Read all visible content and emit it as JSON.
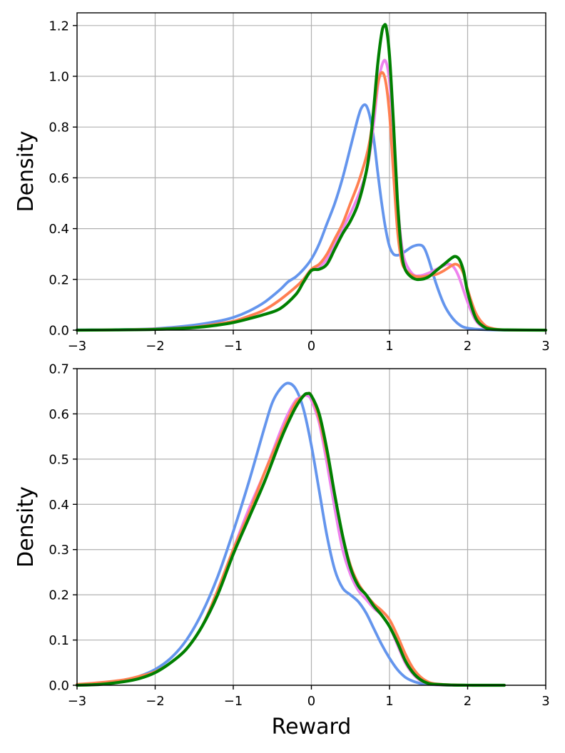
{
  "chart_data": [
    {
      "type": "line",
      "title": "",
      "xlabel": "",
      "ylabel": "Density",
      "xlim": [
        -3,
        3
      ],
      "ylim": [
        0,
        1.25
      ],
      "xticks": [
        -3,
        -2,
        -1,
        0,
        1,
        2,
        3
      ],
      "xtick_labels": [
        "−3",
        "−2",
        "−1",
        "0",
        "1",
        "2",
        "3"
      ],
      "yticks": [
        0,
        0.2,
        0.4,
        0.6,
        0.8,
        1.0,
        1.2
      ],
      "ytick_labels": [
        "0.0",
        "0.2",
        "0.4",
        "0.6",
        "0.8",
        "1.0",
        "1.2"
      ],
      "grid": true,
      "series": [
        {
          "color": "#6495ED",
          "x": [
            -3,
            -2.5,
            -2,
            -1.5,
            -1.2,
            -1,
            -0.8,
            -0.6,
            -0.4,
            -0.3,
            -0.2,
            -0.1,
            0,
            0.1,
            0.2,
            0.3,
            0.4,
            0.5,
            0.6,
            0.65,
            0.7,
            0.75,
            0.8,
            0.85,
            0.9,
            0.95,
            1.0,
            1.05,
            1.1,
            1.15,
            1.2,
            1.3,
            1.4,
            1.45,
            1.5,
            1.6,
            1.7,
            1.8,
            1.9,
            2.0,
            2.2,
            2.5,
            3
          ],
          "y": [
            0.001,
            0.002,
            0.006,
            0.02,
            0.035,
            0.05,
            0.075,
            0.11,
            0.16,
            0.19,
            0.21,
            0.24,
            0.28,
            0.34,
            0.42,
            0.5,
            0.6,
            0.72,
            0.84,
            0.88,
            0.885,
            0.84,
            0.75,
            0.62,
            0.5,
            0.4,
            0.33,
            0.3,
            0.295,
            0.3,
            0.31,
            0.33,
            0.335,
            0.32,
            0.28,
            0.18,
            0.1,
            0.05,
            0.02,
            0.008,
            0.002,
            0.0,
            0.0
          ]
        },
        {
          "color": "#EE82EE",
          "x": [
            -3,
            -2.5,
            -2,
            -1.5,
            -1.2,
            -1,
            -0.8,
            -0.6,
            -0.4,
            -0.2,
            -0.1,
            0,
            0.1,
            0.2,
            0.3,
            0.4,
            0.5,
            0.6,
            0.7,
            0.75,
            0.8,
            0.85,
            0.9,
            0.95,
            1.0,
            1.05,
            1.1,
            1.15,
            1.2,
            1.3,
            1.4,
            1.5,
            1.6,
            1.7,
            1.75,
            1.8,
            1.85,
            1.9,
            2.0,
            2.1,
            2.2,
            2.3,
            2.5,
            3
          ],
          "y": [
            0.0,
            0.001,
            0.004,
            0.012,
            0.025,
            0.035,
            0.055,
            0.08,
            0.12,
            0.17,
            0.2,
            0.24,
            0.25,
            0.28,
            0.34,
            0.4,
            0.46,
            0.53,
            0.62,
            0.7,
            0.82,
            0.96,
            1.04,
            1.06,
            0.98,
            0.78,
            0.52,
            0.35,
            0.27,
            0.22,
            0.215,
            0.225,
            0.24,
            0.255,
            0.26,
            0.255,
            0.235,
            0.2,
            0.11,
            0.04,
            0.012,
            0.004,
            0.001,
            0.0
          ]
        },
        {
          "color": "#FF7F50",
          "x": [
            -3,
            -2.5,
            -2,
            -1.5,
            -1.2,
            -1,
            -0.8,
            -0.6,
            -0.4,
            -0.2,
            -0.1,
            0,
            0.1,
            0.2,
            0.3,
            0.4,
            0.5,
            0.6,
            0.7,
            0.75,
            0.8,
            0.85,
            0.9,
            0.95,
            1.0,
            1.05,
            1.1,
            1.15,
            1.2,
            1.3,
            1.4,
            1.5,
            1.6,
            1.7,
            1.8,
            1.85,
            1.9,
            1.95,
            2.0,
            2.1,
            2.2,
            2.3,
            2.5,
            3
          ],
          "y": [
            0.0,
            0.001,
            0.004,
            0.012,
            0.025,
            0.035,
            0.055,
            0.08,
            0.12,
            0.17,
            0.2,
            0.24,
            0.26,
            0.3,
            0.36,
            0.42,
            0.5,
            0.58,
            0.68,
            0.75,
            0.86,
            0.97,
            1.015,
            0.98,
            0.85,
            0.62,
            0.4,
            0.28,
            0.24,
            0.215,
            0.21,
            0.215,
            0.22,
            0.235,
            0.255,
            0.26,
            0.25,
            0.22,
            0.16,
            0.07,
            0.025,
            0.008,
            0.001,
            0.0
          ]
        },
        {
          "color": "#008000",
          "x": [
            -3,
            -2.5,
            -2,
            -1.5,
            -1.2,
            -1,
            -0.8,
            -0.6,
            -0.4,
            -0.2,
            -0.1,
            0,
            0.1,
            0.2,
            0.3,
            0.4,
            0.5,
            0.6,
            0.7,
            0.75,
            0.8,
            0.85,
            0.9,
            0.93,
            0.96,
            1.0,
            1.05,
            1.1,
            1.15,
            1.2,
            1.3,
            1.4,
            1.5,
            1.6,
            1.7,
            1.8,
            1.85,
            1.9,
            1.95,
            2.0,
            2.1,
            2.2,
            2.3,
            2.5,
            3
          ],
          "y": [
            0.0,
            0.001,
            0.003,
            0.01,
            0.02,
            0.03,
            0.045,
            0.062,
            0.085,
            0.14,
            0.19,
            0.235,
            0.24,
            0.26,
            0.32,
            0.38,
            0.43,
            0.5,
            0.62,
            0.72,
            0.88,
            1.05,
            1.17,
            1.2,
            1.19,
            1.08,
            0.82,
            0.52,
            0.32,
            0.24,
            0.205,
            0.2,
            0.21,
            0.235,
            0.26,
            0.285,
            0.29,
            0.275,
            0.23,
            0.15,
            0.05,
            0.015,
            0.004,
            0.001,
            0.0
          ]
        }
      ]
    },
    {
      "type": "line",
      "title": "",
      "xlabel": "Reward",
      "ylabel": "Density",
      "xlim": [
        -3,
        3
      ],
      "ylim": [
        0,
        0.7
      ],
      "xticks": [
        -3,
        -2,
        -1,
        0,
        1,
        2,
        3
      ],
      "xtick_labels": [
        "−3",
        "−2",
        "−1",
        "0",
        "1",
        "2",
        "3"
      ],
      "yticks": [
        0,
        0.1,
        0.2,
        0.3,
        0.4,
        0.5,
        0.6,
        0.7
      ],
      "ytick_labels": [
        "0.0",
        "0.1",
        "0.2",
        "0.3",
        "0.4",
        "0.5",
        "0.6",
        "0.7"
      ],
      "grid": true,
      "series": [
        {
          "color": "#6495ED",
          "x": [
            -3,
            -2.7,
            -2.4,
            -2.2,
            -2.0,
            -1.8,
            -1.6,
            -1.4,
            -1.2,
            -1.0,
            -0.8,
            -0.6,
            -0.5,
            -0.4,
            -0.3,
            -0.2,
            -0.1,
            0.0,
            0.1,
            0.2,
            0.3,
            0.4,
            0.5,
            0.6,
            0.7,
            0.8,
            0.9,
            1.0,
            1.1,
            1.2,
            1.3,
            1.4,
            1.5,
            1.6,
            1.8,
            2.0
          ],
          "y": [
            0.001,
            0.004,
            0.01,
            0.02,
            0.035,
            0.06,
            0.1,
            0.16,
            0.24,
            0.34,
            0.45,
            0.57,
            0.625,
            0.655,
            0.668,
            0.655,
            0.61,
            0.53,
            0.43,
            0.33,
            0.255,
            0.215,
            0.2,
            0.185,
            0.16,
            0.125,
            0.09,
            0.06,
            0.035,
            0.018,
            0.009,
            0.004,
            0.002,
            0.001,
            0.0,
            0.0
          ]
        },
        {
          "color": "#EE82EE",
          "x": [
            -3,
            -2.7,
            -2.4,
            -2.2,
            -2.0,
            -1.8,
            -1.6,
            -1.4,
            -1.2,
            -1.0,
            -0.8,
            -0.6,
            -0.4,
            -0.3,
            -0.2,
            -0.15,
            -0.1,
            -0.05,
            0.0,
            0.1,
            0.2,
            0.3,
            0.4,
            0.5,
            0.6,
            0.7,
            0.8,
            0.9,
            1.0,
            1.1,
            1.2,
            1.3,
            1.4,
            1.5,
            1.6,
            1.8,
            2.0
          ],
          "y": [
            0.0,
            0.002,
            0.008,
            0.015,
            0.028,
            0.05,
            0.08,
            0.13,
            0.2,
            0.3,
            0.39,
            0.47,
            0.56,
            0.6,
            0.63,
            0.635,
            0.64,
            0.64,
            0.63,
            0.58,
            0.49,
            0.39,
            0.3,
            0.245,
            0.21,
            0.19,
            0.17,
            0.155,
            0.13,
            0.09,
            0.05,
            0.025,
            0.01,
            0.004,
            0.001,
            0.0,
            0.0
          ]
        },
        {
          "color": "#FF7F50",
          "x": [
            -3,
            -2.7,
            -2.4,
            -2.2,
            -2.0,
            -1.8,
            -1.6,
            -1.4,
            -1.2,
            -1.0,
            -0.8,
            -0.6,
            -0.4,
            -0.3,
            -0.2,
            -0.1,
            -0.05,
            0.0,
            0.1,
            0.2,
            0.3,
            0.4,
            0.5,
            0.6,
            0.7,
            0.8,
            0.9,
            1.0,
            1.1,
            1.2,
            1.3,
            1.4,
            1.5,
            1.6,
            1.8,
            2.0
          ],
          "y": [
            0.002,
            0.006,
            0.012,
            0.02,
            0.03,
            0.05,
            0.08,
            0.13,
            0.21,
            0.3,
            0.38,
            0.47,
            0.55,
            0.59,
            0.625,
            0.64,
            0.645,
            0.64,
            0.59,
            0.51,
            0.42,
            0.33,
            0.265,
            0.225,
            0.2,
            0.18,
            0.165,
            0.145,
            0.11,
            0.07,
            0.038,
            0.018,
            0.007,
            0.003,
            0.001,
            0.0
          ]
        },
        {
          "color": "#008000",
          "x": [
            -3,
            -2.7,
            -2.4,
            -2.2,
            -2.0,
            -1.8,
            -1.6,
            -1.4,
            -1.2,
            -1.0,
            -0.8,
            -0.6,
            -0.4,
            -0.3,
            -0.2,
            -0.1,
            -0.05,
            0.0,
            0.1,
            0.2,
            0.3,
            0.4,
            0.5,
            0.6,
            0.7,
            0.8,
            0.9,
            1.0,
            1.1,
            1.2,
            1.3,
            1.4,
            1.5,
            1.6,
            1.8,
            2.0,
            2.2,
            2.47
          ],
          "y": [
            0.0,
            0.002,
            0.008,
            0.015,
            0.028,
            0.05,
            0.08,
            0.13,
            0.2,
            0.29,
            0.37,
            0.45,
            0.54,
            0.58,
            0.615,
            0.64,
            0.645,
            0.64,
            0.6,
            0.52,
            0.42,
            0.33,
            0.26,
            0.22,
            0.2,
            0.175,
            0.155,
            0.13,
            0.095,
            0.055,
            0.028,
            0.012,
            0.004,
            0.002,
            0.0005,
            0.0001,
            0.0,
            0.0
          ]
        }
      ]
    }
  ]
}
